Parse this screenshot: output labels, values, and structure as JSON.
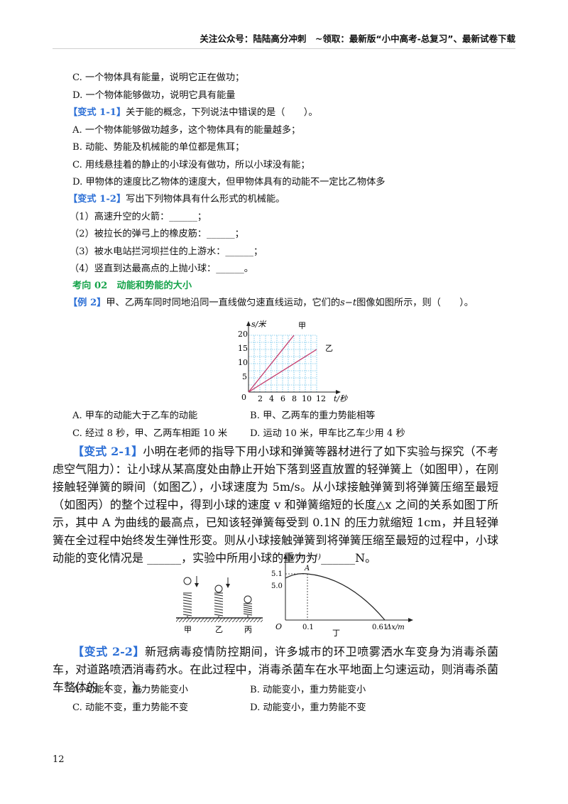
{
  "header": {
    "text": "关注公众号：陆陆高分冲刺　~领取：最新版“小中高考-总复习”、最新试卷下载"
  },
  "lines": {
    "optC": "C. 一个物体具有能量，说明它正在做功；",
    "optD": "D. 一个物体能够做功，说明它具有能量",
    "b11_tag": "【变式 1-1】",
    "b11_text": "关于能的概念，下列说法中错误的是（　　）。",
    "b11_A": "A. 一个物体能够做功越多，这个物体具有的能量越多；",
    "b11_B": "B. 动能、势能及机械能的单位都是焦耳；",
    "b11_C": "C. 用线悬挂着的静止的小球没有做功，所以小球没有能；",
    "b11_D": "D. 甲物体的速度比乙物体的速度大，但甲物体具有的动能不一定比乙物体多",
    "b12_tag": "【变式 1-2】",
    "b12_text": "写出下列物体具有什么形式的机械能。",
    "b12_1": "（1）高速升空的火箭：______；",
    "b12_2": "（2）被拉长的弹弓上的橡皮筋：______；",
    "b12_3": "（3）被水电站拦河坝拦住的上游水：______；",
    "b12_4": "（4）竖直到达最高点的上抛小球：______。",
    "section": "考向 02　动能和势能的大小",
    "ex2_tag": "【例 2】",
    "ex2_text": "甲、乙两车同时同地沿同一直线做匀速直线运动，它们的",
    "ex2_text2": "图像如图所示，则（　　）。",
    "ex2_st": "s−t",
    "ex2_A": "A. 甲车的动能大于乙车的动能",
    "ex2_B": "B. 甲、乙两车的重力势能相等",
    "ex2_C": "C. 经过 8 秒，甲、乙两车相距 10 米",
    "ex2_D": "D. 运动 10 米，甲车比乙车少用 4 秒",
    "b21_tag": "【变式 2-1】",
    "b21_text": "小明在老师的指导下用小球和弹簧等器材进行了如下实验与探究（不考虑空气阻力）：让小球从某高度处由静止开始下落到竖直放置的轻弹簧上（如图甲），在刚接触轻弹簧的瞬间（如图乙），小球速度为 5m/s。从小球接触弹簧到将弹簧压缩至最短（如图丙）的整个过程中，得到小球的速度 v 和弹簧缩短的长度△x 之间的关系如图丁所示，其中 A 为曲线的最高点，已知该轻弹簧每受到 0.1N 的压力就缩短 1cm，并且轻弹簧在全过程中始终发生弹性形变。则从小球接触弹簧到将弹簧压缩至最短的过程中，小球动能的变化情况是 ______，实验中所用小球的重力为 ______N。",
    "b22_tag": "【变式 2-2】",
    "b22_text": "新冠病毒疫情防控期间，许多城市的环卫喷雾洒水车变身为消毒杀菌车，对道路喷洒消毒药水。在此过程中，消毒杀菌车在水平地面上匀速运动，则消毒杀菌车整体的（　　）。",
    "b22_A": "A. 动能不变，重力势能变小",
    "b22_B": "B. 动能变小，重力势能变小",
    "b22_C": "C. 动能不变，重力势能不变",
    "b22_D": "D. 动能变小，重力势能不变"
  },
  "st_graph": {
    "y_axis_label": "s/米",
    "x_axis_label": "t/秒",
    "y_ticks": [
      "20",
      "15",
      "10",
      "5"
    ],
    "x_ticks": [
      "2",
      "4",
      "6",
      "8",
      "10",
      "12"
    ],
    "origin": "0",
    "line_jia": "甲",
    "line_yi": "乙",
    "series_jia": {
      "x": [
        0,
        8
      ],
      "y": [
        0,
        20
      ]
    },
    "series_yi": {
      "x": [
        0,
        12
      ],
      "y": [
        0,
        15
      ]
    },
    "line_color": "#c43a6b",
    "grid_color": "#29a7e0"
  },
  "spring_figure": {
    "label_jia": "甲",
    "label_yi": "乙",
    "label_bing": "丙"
  },
  "v_graph": {
    "y_axis_label": "v/(m·s⁻¹)",
    "x_axis_label": "Δx/m",
    "y_51": "5.1",
    "y_50": "5.0",
    "x_01": "0.1",
    "x_061": "0.61",
    "origin": "O",
    "point_A": "A",
    "caption": "丁",
    "peak": {
      "x": 0.1,
      "v": 5.1
    },
    "start": {
      "x": 0,
      "v": 5.0
    },
    "end": {
      "x": 0.61,
      "v": 0
    }
  },
  "page_number": "12"
}
